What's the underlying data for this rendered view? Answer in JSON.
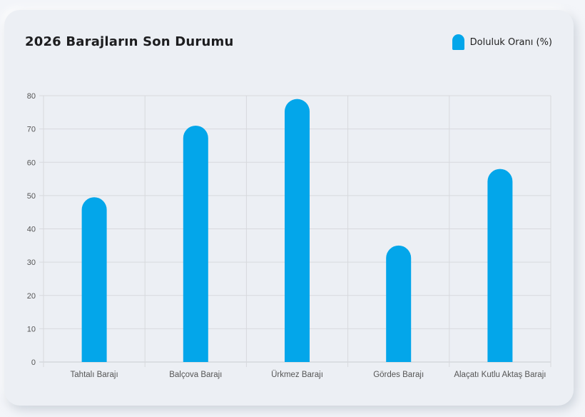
{
  "chart_data": {
    "type": "bar",
    "title": "2026 Barajların Son Durumu",
    "legend_position": "top-right",
    "grid": true,
    "categories": [
      "Tahtalı Barajı",
      "Balçova Barajı",
      "Ürkmez Barajı",
      "Gördes Barajı",
      "Alaçatı Kutlu Aktaş Barajı"
    ],
    "series": [
      {
        "name": "Doluluk Oranı (%)",
        "color": "#03a6ea",
        "values": [
          49.5,
          71,
          79,
          35,
          58
        ]
      }
    ],
    "ylim": [
      0,
      80
    ],
    "yticks": [
      0,
      10,
      20,
      30,
      40,
      50,
      60,
      70,
      80
    ],
    "xlabel": "",
    "ylabel": ""
  }
}
